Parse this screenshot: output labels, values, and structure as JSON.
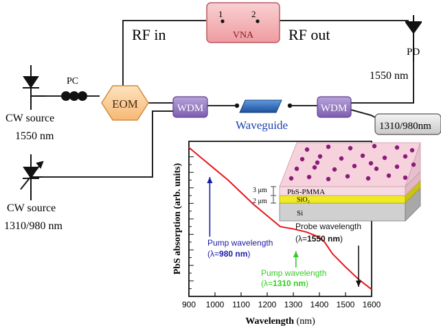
{
  "setup": {
    "vna": {
      "label": "VNA",
      "port1": "1",
      "port2": "2"
    },
    "rf_in": "RF in",
    "rf_out": "RF out",
    "pd_label": "PD",
    "pd_wavelength": "1550 nm",
    "pc_label": "PC",
    "eom_label": "EOM",
    "wdm1_label": "WDM",
    "wdm2_label": "WDM",
    "waveguide_label": "Waveguide",
    "source1": {
      "name": "CW source",
      "wavelength": "1550 nm"
    },
    "source2": {
      "name": "CW source",
      "wavelength": "1310/980 nm"
    },
    "output_box": "1310/980nm",
    "colors": {
      "vna_fill": "#f4b6b8",
      "eom_fill": "#fbcf9a",
      "wdm_fill": "#9b7fc4",
      "waveguide_fill": "#2e6fc0",
      "fiber": "#222222"
    }
  },
  "inset": {
    "layers": {
      "top": "PbS-PMMA",
      "middle": "SiO₂",
      "bottom": "Si"
    },
    "thickness_top": "3 μm",
    "thickness_middle": "2 μm",
    "colors": {
      "pmma": "#f5d2dc",
      "sio2": "#f0ea25",
      "si": "#d0d0d0",
      "dots": "#8b1a7a"
    }
  },
  "chart_data": {
    "type": "line",
    "x": [
      900,
      950,
      1000,
      1050,
      1100,
      1150,
      1200,
      1250,
      1300,
      1350,
      1380,
      1400,
      1420,
      1450,
      1500,
      1550,
      1600
    ],
    "series": [
      {
        "values": [
          9.6,
          8.9,
          8.2,
          7.5,
          6.7,
          5.9,
          5.2,
          4.5,
          4.35,
          4.15,
          3.95,
          3.8,
          3.5,
          2.75,
          1.9,
          1.1,
          0.45
        ]
      }
    ],
    "xlim": [
      900,
      1600
    ],
    "ylim": [
      0,
      10
    ],
    "xticks": [
      900,
      1000,
      1100,
      1200,
      1300,
      1400,
      1500,
      1600
    ],
    "xlabel_bold": "Wavelength",
    "xlabel_unit": " (nm)",
    "ylabel": "PbS absorption (arb. units)",
    "line_color": "#e8141c",
    "annotations": [
      {
        "line1": "Pump wavelength",
        "line2_prefix": "(λ=",
        "line2_value": "980 nm",
        "line2_suffix": ")",
        "color": "#1a1aa8",
        "x": 980
      },
      {
        "line1": "Pump wavelength",
        "line2_prefix": "(λ=",
        "line2_value": "1310 nm",
        "line2_suffix": ")",
        "color": "#33cc22",
        "x": 1310
      },
      {
        "line1": "Probe wavelength",
        "line2_prefix": "(λ=",
        "line2_value": "1550 nm",
        "line2_suffix": ")",
        "color": "#111111",
        "x": 1550
      }
    ]
  }
}
